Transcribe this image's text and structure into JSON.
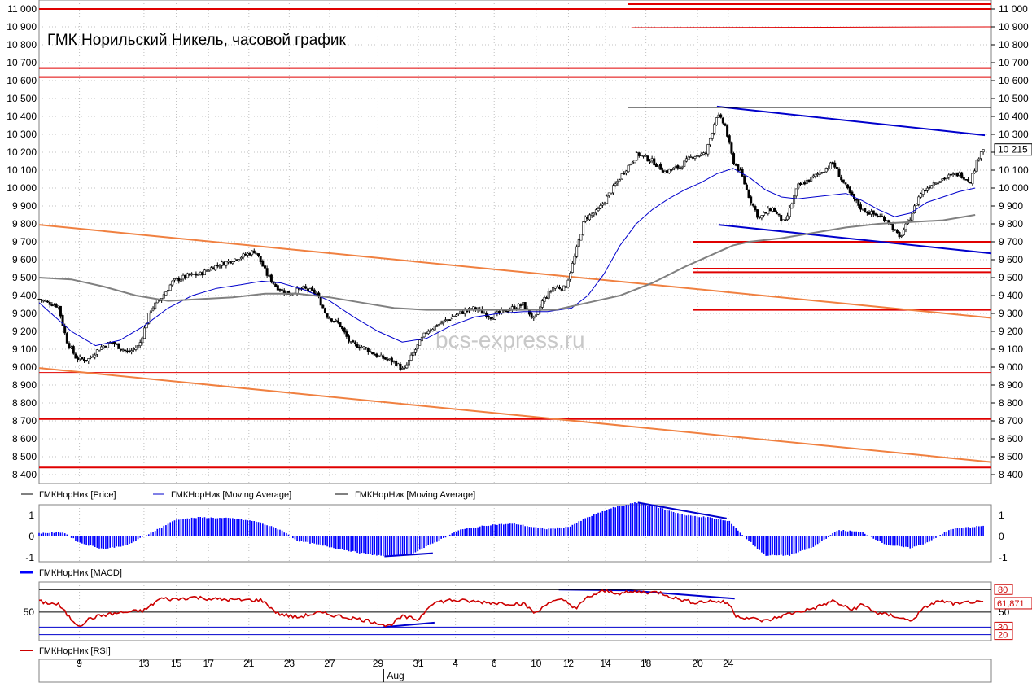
{
  "chart_data": [
    {
      "type": "candlestick",
      "title": "ГМК Норильский Никель, часовой график",
      "watermark": "bcs-express.ru",
      "y_ticks": [
        "11 000",
        "10 900",
        "10 800",
        "10 700",
        "10 600",
        "10 500",
        "10 400",
        "10 300",
        "10 200",
        "10 100",
        "10 000",
        "9 900",
        "9 800",
        "9 700",
        "9 600",
        "9 500",
        "9 400",
        "9 300",
        "9 200",
        "9 100",
        "9 000",
        "8 900",
        "8 800",
        "8 700",
        "8 600",
        "8 500",
        "8 400"
      ],
      "ylim": [
        8350,
        11050
      ],
      "last_price": 10215,
      "last_price_label": "10 215",
      "x_ticks": [
        "9",
        "13",
        "15",
        "17",
        "21",
        "23",
        "27",
        "29",
        "31",
        "4",
        "6",
        "10",
        "12",
        "14",
        "18",
        "20",
        "24"
      ],
      "x_month_label": "Aug",
      "price_path": [
        [
          0,
          9380
        ],
        [
          1.2,
          9340
        ],
        [
          1.7,
          9150
        ],
        [
          2.3,
          9050
        ],
        [
          3,
          9040
        ],
        [
          3.8,
          9110
        ],
        [
          4.5,
          9140
        ],
        [
          5.5,
          9080
        ],
        [
          6.2,
          9120
        ],
        [
          6.9,
          9320
        ],
        [
          7.6,
          9390
        ],
        [
          8.3,
          9480
        ],
        [
          9.2,
          9510
        ],
        [
          10,
          9520
        ],
        [
          10.8,
          9560
        ],
        [
          11.7,
          9590
        ],
        [
          12.6,
          9620
        ],
        [
          13.4,
          9650
        ],
        [
          14.1,
          9520
        ],
        [
          14.7,
          9450
        ],
        [
          15.4,
          9410
        ],
        [
          16.4,
          9440
        ],
        [
          17.2,
          9410
        ],
        [
          17.8,
          9290
        ],
        [
          18.6,
          9240
        ],
        [
          19.3,
          9130
        ],
        [
          20.1,
          9110
        ],
        [
          21,
          9060
        ],
        [
          22,
          9030
        ],
        [
          22.6,
          8980
        ],
        [
          23.2,
          9080
        ],
        [
          24,
          9200
        ],
        [
          25,
          9250
        ],
        [
          26,
          9300
        ],
        [
          27,
          9330
        ],
        [
          28,
          9280
        ],
        [
          29,
          9320
        ],
        [
          30,
          9350
        ],
        [
          30.7,
          9260
        ],
        [
          31.2,
          9370
        ],
        [
          31.9,
          9450
        ],
        [
          32.6,
          9440
        ],
        [
          33.2,
          9620
        ],
        [
          33.8,
          9830
        ],
        [
          34.6,
          9870
        ],
        [
          35.5,
          9990
        ],
        [
          36.3,
          10100
        ],
        [
          37.1,
          10190
        ],
        [
          38,
          10150
        ],
        [
          38.8,
          10090
        ],
        [
          39.7,
          10120
        ],
        [
          40.5,
          10180
        ],
        [
          41.3,
          10190
        ],
        [
          42,
          10410
        ],
        [
          42.5,
          10350
        ],
        [
          43,
          10150
        ],
        [
          43.5,
          10080
        ],
        [
          44,
          9950
        ],
        [
          44.6,
          9830
        ],
        [
          45.4,
          9890
        ],
        [
          46.2,
          9800
        ],
        [
          47,
          10010
        ],
        [
          47.8,
          10050
        ],
        [
          48.6,
          10100
        ],
        [
          49.2,
          10140
        ],
        [
          49.7,
          10050
        ],
        [
          50.3,
          9960
        ],
        [
          51,
          9880
        ],
        [
          51.8,
          9850
        ],
        [
          52.6,
          9820
        ],
        [
          53.3,
          9720
        ],
        [
          53.9,
          9820
        ],
        [
          54.6,
          9970
        ],
        [
          55.4,
          10030
        ],
        [
          56.2,
          10060
        ],
        [
          57,
          10080
        ],
        [
          57.7,
          10040
        ],
        [
          58.4,
          10220
        ]
      ],
      "moving_averages": [
        {
          "name": "ГМКНорНик [Moving Average]",
          "color": "#0000cc",
          "path": [
            [
              0,
              9360
            ],
            [
              2,
              9200
            ],
            [
              3.5,
              9120
            ],
            [
              5,
              9150
            ],
            [
              6.5,
              9230
            ],
            [
              8,
              9330
            ],
            [
              9.5,
              9400
            ],
            [
              11,
              9440
            ],
            [
              12.5,
              9460
            ],
            [
              13.8,
              9480
            ],
            [
              15,
              9470
            ],
            [
              16.5,
              9430
            ],
            [
              18,
              9370
            ],
            [
              19.5,
              9280
            ],
            [
              21,
              9200
            ],
            [
              22.5,
              9140
            ],
            [
              24,
              9160
            ],
            [
              25.5,
              9230
            ],
            [
              27,
              9280
            ],
            [
              28.5,
              9300
            ],
            [
              30,
              9310
            ],
            [
              31.5,
              9310
            ],
            [
              33,
              9330
            ],
            [
              34,
              9400
            ],
            [
              35,
              9520
            ],
            [
              36,
              9680
            ],
            [
              37,
              9800
            ],
            [
              38,
              9880
            ],
            [
              39,
              9940
            ],
            [
              40,
              9990
            ],
            [
              41,
              10030
            ],
            [
              42,
              10080
            ],
            [
              43,
              10110
            ],
            [
              44,
              10060
            ],
            [
              45,
              9990
            ],
            [
              46,
              9950
            ],
            [
              47,
              9940
            ],
            [
              48,
              9950
            ],
            [
              49,
              9960
            ],
            [
              50,
              9970
            ],
            [
              51,
              9930
            ],
            [
              52,
              9880
            ],
            [
              53,
              9840
            ],
            [
              54,
              9860
            ],
            [
              55,
              9920
            ],
            [
              56,
              9950
            ],
            [
              57,
              9980
            ],
            [
              58,
              10000
            ]
          ]
        },
        {
          "name": "ГМКНорНик [Moving Average]",
          "color": "#808080",
          "path": [
            [
              0,
              9500
            ],
            [
              2,
              9490
            ],
            [
              4,
              9450
            ],
            [
              6,
              9400
            ],
            [
              8,
              9370
            ],
            [
              10,
              9380
            ],
            [
              12,
              9390
            ],
            [
              14,
              9410
            ],
            [
              16,
              9410
            ],
            [
              18,
              9390
            ],
            [
              20,
              9360
            ],
            [
              22,
              9330
            ],
            [
              24,
              9320
            ],
            [
              26,
              9320
            ],
            [
              28,
              9320
            ],
            [
              30,
              9320
            ],
            [
              32,
              9320
            ],
            [
              34,
              9360
            ],
            [
              36,
              9400
            ],
            [
              38,
              9470
            ],
            [
              40,
              9560
            ],
            [
              42,
              9640
            ],
            [
              43,
              9680
            ],
            [
              44,
              9700
            ],
            [
              46,
              9720
            ],
            [
              48,
              9750
            ],
            [
              50,
              9780
            ],
            [
              52,
              9800
            ],
            [
              54,
              9810
            ],
            [
              56,
              9820
            ],
            [
              58,
              9850
            ]
          ]
        }
      ],
      "support_resistance_levels": [
        11000,
        10670,
        10620,
        9700,
        9550,
        9530,
        9320,
        8970,
        8710,
        8440
      ],
      "legend": [
        "ГМКНорНик [Price]",
        "ГМКНорНик [Moving Average]",
        "ГМКНорНик [Moving Average]"
      ]
    },
    {
      "type": "bar",
      "name": "ГМКНорНик [MACD]",
      "y_ticks": [
        "1",
        "0",
        "-1"
      ],
      "ylim": [
        -1.2,
        1.5
      ],
      "color": "#0000ff",
      "path": [
        [
          0,
          0.15
        ],
        [
          1.5,
          0.2
        ],
        [
          2.5,
          -0.3
        ],
        [
          4,
          -0.6
        ],
        [
          5.5,
          -0.4
        ],
        [
          7,
          0.2
        ],
        [
          8.5,
          0.8
        ],
        [
          10,
          0.9
        ],
        [
          12,
          0.85
        ],
        [
          13.5,
          0.7
        ],
        [
          15,
          0.3
        ],
        [
          16,
          -0.2
        ],
        [
          18,
          -0.5
        ],
        [
          20,
          -0.8
        ],
        [
          21.5,
          -0.95
        ],
        [
          23,
          -0.85
        ],
        [
          24.5,
          -0.3
        ],
        [
          26,
          0.3
        ],
        [
          28,
          0.55
        ],
        [
          29.5,
          0.6
        ],
        [
          30.5,
          0.45
        ],
        [
          31.5,
          0.35
        ],
        [
          32.8,
          0.45
        ],
        [
          34,
          0.9
        ],
        [
          35.5,
          1.35
        ],
        [
          37,
          1.6
        ],
        [
          38.5,
          1.35
        ],
        [
          40,
          1.0
        ],
        [
          41.5,
          0.9
        ],
        [
          42.8,
          0.7
        ],
        [
          43.6,
          0.05
        ],
        [
          45,
          -0.9
        ],
        [
          46.5,
          -0.9
        ],
        [
          48,
          -0.5
        ],
        [
          49.5,
          0.3
        ],
        [
          51,
          0.2
        ],
        [
          52.5,
          -0.4
        ],
        [
          54,
          -0.55
        ],
        [
          55,
          -0.3
        ],
        [
          56.5,
          0.35
        ],
        [
          58.5,
          0.5
        ]
      ]
    },
    {
      "type": "line",
      "name": "ГМКНорНик [RSI]",
      "y_ticks": [
        "50"
      ],
      "level_labels": [
        "80",
        "30",
        "20"
      ],
      "ylim": [
        12,
        90
      ],
      "current_label": "61,871",
      "path": [
        [
          0,
          64
        ],
        [
          1.2,
          60
        ],
        [
          2,
          40
        ],
        [
          2.5,
          32
        ],
        [
          3.2,
          42
        ],
        [
          4,
          46
        ],
        [
          5,
          49
        ],
        [
          6.5,
          52
        ],
        [
          7.5,
          68
        ],
        [
          8.5,
          67
        ],
        [
          9.5,
          70
        ],
        [
          11,
          67
        ],
        [
          12.5,
          66
        ],
        [
          13.8,
          66
        ],
        [
          14.8,
          48
        ],
        [
          16,
          43
        ],
        [
          17.3,
          49
        ],
        [
          18.5,
          45
        ],
        [
          20,
          40
        ],
        [
          21,
          36
        ],
        [
          21.6,
          31
        ],
        [
          22.5,
          44
        ],
        [
          23.5,
          40
        ],
        [
          24.3,
          62
        ],
        [
          25.5,
          66
        ],
        [
          27,
          64
        ],
        [
          28.5,
          62
        ],
        [
          30,
          61
        ],
        [
          30.8,
          48
        ],
        [
          31.5,
          63
        ],
        [
          32.5,
          66
        ],
        [
          33.3,
          55
        ],
        [
          34,
          70
        ],
        [
          35,
          78
        ],
        [
          36.1,
          75
        ],
        [
          37,
          77
        ],
        [
          38.5,
          76
        ],
        [
          39.5,
          68
        ],
        [
          40.5,
          63
        ],
        [
          41.8,
          65
        ],
        [
          42.7,
          62
        ],
        [
          43.2,
          45
        ],
        [
          44,
          42
        ],
        [
          45,
          38
        ],
        [
          46.5,
          48
        ],
        [
          48,
          55
        ],
        [
          49.2,
          65
        ],
        [
          50.3,
          53
        ],
        [
          51,
          60
        ],
        [
          52,
          48
        ],
        [
          53,
          45
        ],
        [
          54,
          38
        ],
        [
          55,
          58
        ],
        [
          55.8,
          65
        ],
        [
          57,
          60
        ],
        [
          57.7,
          64
        ],
        [
          58.5,
          61.871
        ]
      ]
    }
  ]
}
